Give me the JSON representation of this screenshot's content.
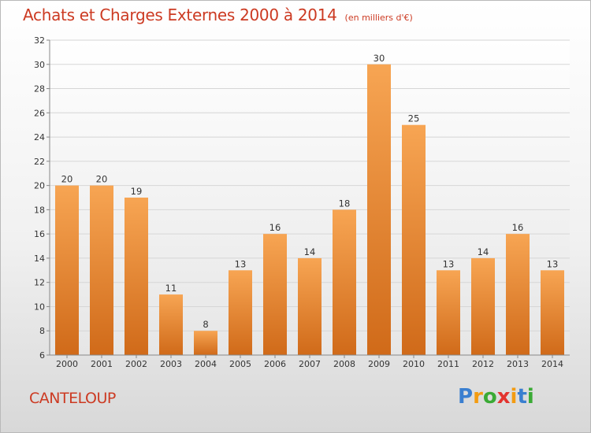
{
  "title": "Achats et Charges Externes 2000 à 2014",
  "unit_note": "(en milliers d'€)",
  "town": "CANTELOUP",
  "logo": {
    "text": "Proxiti",
    "colors": [
      "#3a7fd0",
      "#f39c12",
      "#3aaa35",
      "#e3342f",
      "#f39c12",
      "#3a7fd0",
      "#3aaa35"
    ]
  },
  "colors": {
    "bar_top": "#f7a553",
    "bar_bottom": "#d06a19",
    "title": "#cc3a22",
    "grid": "#d6d6d6"
  },
  "chart_data": {
    "type": "bar",
    "categories": [
      "2000",
      "2001",
      "2002",
      "2003",
      "2004",
      "2005",
      "2006",
      "2007",
      "2008",
      "2009",
      "2010",
      "2011",
      "2012",
      "2013",
      "2014"
    ],
    "values": [
      20,
      20,
      19,
      11,
      8,
      13,
      16,
      14,
      18,
      30,
      25,
      13,
      14,
      16,
      13
    ],
    "ylim": [
      6,
      32
    ],
    "yticks": [
      6,
      8,
      10,
      12,
      14,
      16,
      18,
      20,
      22,
      24,
      26,
      28,
      30,
      32
    ],
    "grid": true,
    "data_labels": true,
    "xlabel": "",
    "ylabel": ""
  }
}
